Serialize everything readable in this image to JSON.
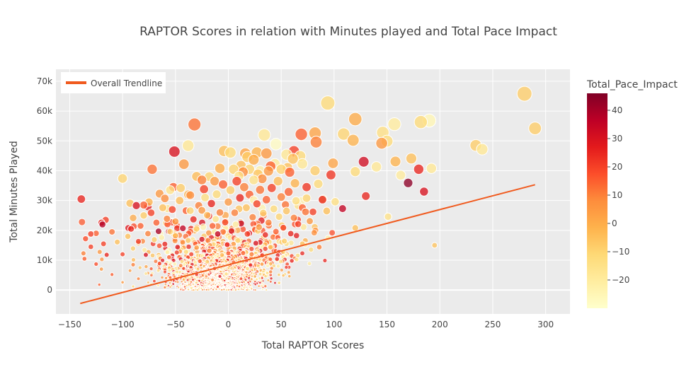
{
  "chart_data": {
    "type": "scatter",
    "title": "RAPTOR Scores in relation with Minutes played and Total Pace Impact",
    "xlabel": "Total RAPTOR Scores",
    "ylabel": "Total Minutes Played",
    "xlim": [
      -163,
      323
    ],
    "ylim": [
      -8000,
      74000
    ],
    "xticks": [
      -150,
      -100,
      -50,
      0,
      50,
      100,
      150,
      200,
      250,
      300
    ],
    "xtick_labels": [
      "−150",
      "−100",
      "−50",
      "0",
      "50",
      "100",
      "150",
      "200",
      "250",
      "300"
    ],
    "yticks": [
      0,
      10000,
      20000,
      30000,
      40000,
      50000,
      60000,
      70000
    ],
    "ytick_labels": [
      "0",
      "10k",
      "20k",
      "30k",
      "40k",
      "50k",
      "60k",
      "70k"
    ],
    "grid": true,
    "plot_background": "#ebebeb",
    "legend": {
      "position": "top-left",
      "entries": [
        {
          "name": "Overall Trendline",
          "color": "#f05a1e"
        }
      ]
    },
    "trendline": {
      "name": "Overall Trendline",
      "color": "#f05a1e",
      "x": [
        -140,
        290
      ],
      "y": [
        -4500,
        35300
      ]
    },
    "colorbar": {
      "title": "Total_Pace_Impact",
      "range": [
        -30,
        46
      ],
      "ticks": [
        40,
        30,
        20,
        10,
        0,
        -10,
        -20
      ],
      "tick_labels": [
        "40",
        "30",
        "20",
        "10",
        "0",
        "−10",
        "−20"
      ],
      "colorscale": [
        "#ffffcc",
        "#ffeda0",
        "#fed976",
        "#feb24c",
        "#fd8d3c",
        "#fc4e2a",
        "#e31a1c",
        "#bd0026",
        "#800026"
      ]
    },
    "size_encoding": "Total Minutes Played",
    "points": [
      {
        "x": 280,
        "y": 65800,
        "c": -8
      },
      {
        "x": 290,
        "y": 54200,
        "c": -8
      },
      {
        "x": 240,
        "y": 47200,
        "c": -18
      },
      {
        "x": 234,
        "y": 48500,
        "c": -8
      },
      {
        "x": 195,
        "y": 15000,
        "c": -6
      },
      {
        "x": 190,
        "y": 56800,
        "c": -25
      },
      {
        "x": 182,
        "y": 56300,
        "c": -12
      },
      {
        "x": 192,
        "y": 40800,
        "c": -18
      },
      {
        "x": 185,
        "y": 33000,
        "c": 30
      },
      {
        "x": 180,
        "y": 40500,
        "c": 25
      },
      {
        "x": 173,
        "y": 44100,
        "c": -5
      },
      {
        "x": 170,
        "y": 35900,
        "c": 44
      },
      {
        "x": 163,
        "y": 38500,
        "c": -20
      },
      {
        "x": 158,
        "y": 43100,
        "c": -2
      },
      {
        "x": 157,
        "y": 55600,
        "c": -20
      },
      {
        "x": 150,
        "y": 49900,
        "c": -12
      },
      {
        "x": 146,
        "y": 52800,
        "c": -14
      },
      {
        "x": 145,
        "y": 49200,
        "c": 5
      },
      {
        "x": 140,
        "y": 41300,
        "c": -18
      },
      {
        "x": 151,
        "y": 24600,
        "c": -15
      },
      {
        "x": 130,
        "y": 31500,
        "c": 25
      },
      {
        "x": 128,
        "y": 43000,
        "c": 32
      },
      {
        "x": 120,
        "y": 57300,
        "c": 0
      },
      {
        "x": 118,
        "y": 50200,
        "c": -2
      },
      {
        "x": 120,
        "y": 39700,
        "c": -12
      },
      {
        "x": 120,
        "y": 20800,
        "c": -5
      },
      {
        "x": 109,
        "y": 52300,
        "c": -10
      },
      {
        "x": 108,
        "y": 27300,
        "c": 35
      },
      {
        "x": 101,
        "y": 29600,
        "c": -14
      },
      {
        "x": 99,
        "y": 42500,
        "c": 2
      },
      {
        "x": 97,
        "y": 38600,
        "c": 22
      },
      {
        "x": 94,
        "y": 62700,
        "c": -12
      },
      {
        "x": 93,
        "y": 26500,
        "c": -5
      },
      {
        "x": 89,
        "y": 30300,
        "c": 25
      },
      {
        "x": 86,
        "y": 14400,
        "c": 10
      },
      {
        "x": 85,
        "y": 35600,
        "c": -12
      },
      {
        "x": 83,
        "y": 49600,
        "c": 10
      },
      {
        "x": 82,
        "y": 52600,
        "c": 2
      },
      {
        "x": 82,
        "y": 40000,
        "c": -8
      },
      {
        "x": 80,
        "y": 26200,
        "c": 20
      },
      {
        "x": 74,
        "y": 34500,
        "c": 22
      },
      {
        "x": 73,
        "y": 26200,
        "c": 12
      },
      {
        "x": 70,
        "y": 42300,
        "c": -18
      },
      {
        "x": 69,
        "y": 52200,
        "c": 15
      },
      {
        "x": 68,
        "y": 44900,
        "c": -12
      },
      {
        "x": 62,
        "y": 46500,
        "c": 20
      },
      {
        "x": 61,
        "y": 44000,
        "c": -6
      },
      {
        "x": 58,
        "y": 39500,
        "c": 15
      },
      {
        "x": 56,
        "y": 41000,
        "c": -5
      },
      {
        "x": 54,
        "y": 28600,
        "c": 12
      },
      {
        "x": 53,
        "y": 16400,
        "c": -8
      },
      {
        "x": 50,
        "y": 40500,
        "c": -10
      },
      {
        "x": 47,
        "y": 36500,
        "c": -4
      },
      {
        "x": 45,
        "y": 48900,
        "c": -28
      },
      {
        "x": 44,
        "y": 42300,
        "c": -20
      },
      {
        "x": 40,
        "y": 41500,
        "c": 15
      },
      {
        "x": 36,
        "y": 45800,
        "c": 5
      },
      {
        "x": 34,
        "y": 52000,
        "c": -18
      },
      {
        "x": 32,
        "y": 37300,
        "c": 8
      },
      {
        "x": 30,
        "y": 40000,
        "c": -22
      },
      {
        "x": 27,
        "y": 46100,
        "c": -2
      },
      {
        "x": 24,
        "y": 43700,
        "c": 0
      },
      {
        "x": 20,
        "y": 40500,
        "c": -10
      },
      {
        "x": 18,
        "y": 44600,
        "c": -8
      },
      {
        "x": 16,
        "y": 45800,
        "c": 2
      },
      {
        "x": 12,
        "y": 41700,
        "c": -5
      },
      {
        "x": 10,
        "y": 38200,
        "c": -15
      },
      {
        "x": 5,
        "y": 40500,
        "c": -10
      },
      {
        "x": 2,
        "y": 46100,
        "c": -12
      },
      {
        "x": -4,
        "y": 46600,
        "c": -5
      },
      {
        "x": -8,
        "y": 40800,
        "c": 0
      },
      {
        "x": -13,
        "y": 36500,
        "c": 5
      },
      {
        "x": -18,
        "y": 38000,
        "c": -10
      },
      {
        "x": -25,
        "y": 36900,
        "c": 10
      },
      {
        "x": -30,
        "y": 38100,
        "c": -4
      },
      {
        "x": -32,
        "y": 55500,
        "c": 12
      },
      {
        "x": -38,
        "y": 48400,
        "c": -18
      },
      {
        "x": -42,
        "y": 42200,
        "c": 5
      },
      {
        "x": -45,
        "y": 34200,
        "c": -8
      },
      {
        "x": -51,
        "y": 46400,
        "c": 30
      },
      {
        "x": -52,
        "y": 34500,
        "c": 15
      },
      {
        "x": -55,
        "y": 33500,
        "c": -16
      },
      {
        "x": -60,
        "y": 30700,
        "c": 8
      },
      {
        "x": -65,
        "y": 32300,
        "c": 5
      },
      {
        "x": -72,
        "y": 40500,
        "c": 12
      },
      {
        "x": -75,
        "y": 29500,
        "c": -2
      },
      {
        "x": -80,
        "y": 28500,
        "c": 15
      },
      {
        "x": -87,
        "y": 28300,
        "c": 30
      },
      {
        "x": -93,
        "y": 29100,
        "c": -5
      },
      {
        "x": -100,
        "y": 37400,
        "c": -10
      },
      {
        "x": -110,
        "y": 19500,
        "c": 12
      },
      {
        "x": -116,
        "y": 23500,
        "c": 20
      },
      {
        "x": -120,
        "y": 22600,
        "c": 25
      },
      {
        "x": -119,
        "y": 22000,
        "c": 38
      },
      {
        "x": -125,
        "y": 19000,
        "c": 15
      },
      {
        "x": -130,
        "y": 18800,
        "c": 20
      },
      {
        "x": -135,
        "y": 17200,
        "c": 18
      },
      {
        "x": -139,
        "y": 30500,
        "c": 25
      },
      {
        "x": -137,
        "y": 12300,
        "c": 10
      },
      {
        "x": -136,
        "y": 10500,
        "c": 15
      },
      {
        "x": -130,
        "y": 14500,
        "c": 20
      },
      {
        "x": -125,
        "y": 8700,
        "c": 18
      },
      {
        "x": -120,
        "y": 7000,
        "c": 5
      },
      {
        "x": -118,
        "y": 15500,
        "c": 20
      },
      {
        "x": -115,
        "y": 11800,
        "c": 25
      },
      {
        "x": -110,
        "y": 5200,
        "c": 15
      },
      {
        "x": -105,
        "y": 16100,
        "c": -5
      },
      {
        "x": -100,
        "y": 12000,
        "c": 20
      },
      {
        "x": -95,
        "y": 18000,
        "c": -5
      },
      {
        "x": -92,
        "y": 20500,
        "c": 25
      },
      {
        "x": -90,
        "y": 8500,
        "c": 10
      },
      {
        "x": -85,
        "y": 16300,
        "c": 22
      },
      {
        "x": -83,
        "y": 21500,
        "c": 15
      },
      {
        "x": -80,
        "y": 25000,
        "c": -8
      },
      {
        "x": -78,
        "y": 11800,
        "c": 30
      },
      {
        "x": -76,
        "y": 18900,
        "c": 10
      },
      {
        "x": -73,
        "y": 25900,
        "c": 20
      },
      {
        "x": -70,
        "y": 16900,
        "c": -8
      },
      {
        "x": -68,
        "y": 22600,
        "c": 15
      },
      {
        "x": -66,
        "y": 19700,
        "c": 40
      },
      {
        "x": -65,
        "y": 8900,
        "c": 20
      },
      {
        "x": -62,
        "y": 27600,
        "c": -5
      },
      {
        "x": -60,
        "y": 15400,
        "c": 25
      },
      {
        "x": -58,
        "y": 23900,
        "c": 10
      },
      {
        "x": -56,
        "y": 11000,
        "c": 15
      },
      {
        "x": -55,
        "y": 19600,
        "c": -12
      },
      {
        "x": -53,
        "y": 27000,
        "c": 20
      },
      {
        "x": -50,
        "y": 23000,
        "c": 5
      },
      {
        "x": -48,
        "y": 14400,
        "c": 30
      },
      {
        "x": -46,
        "y": 30000,
        "c": -4
      },
      {
        "x": -45,
        "y": 8200,
        "c": 10
      },
      {
        "x": -43,
        "y": 20700,
        "c": 35
      },
      {
        "x": -40,
        "y": 26600,
        "c": 15
      },
      {
        "x": -38,
        "y": 16600,
        "c": -6
      },
      {
        "x": -36,
        "y": 31800,
        "c": 8
      },
      {
        "x": -35,
        "y": 12000,
        "c": 20
      },
      {
        "x": -33,
        "y": 23700,
        "c": 25
      },
      {
        "x": -30,
        "y": 20500,
        "c": -10
      },
      {
        "x": -28,
        "y": 28300,
        "c": 10
      },
      {
        "x": -27,
        "y": 9700,
        "c": 15
      },
      {
        "x": -25,
        "y": 17000,
        "c": 30
      },
      {
        "x": -23,
        "y": 33800,
        "c": 20
      },
      {
        "x": -20,
        "y": 25100,
        "c": -5
      },
      {
        "x": -18,
        "y": 13200,
        "c": 10
      },
      {
        "x": -16,
        "y": 29000,
        "c": 25
      },
      {
        "x": -15,
        "y": 21500,
        "c": 15
      },
      {
        "x": -13,
        "y": 7200,
        "c": 20
      },
      {
        "x": -11,
        "y": 32100,
        "c": -12
      },
      {
        "x": -10,
        "y": 18800,
        "c": 35
      },
      {
        "x": -8,
        "y": 26000,
        "c": 10
      },
      {
        "x": -6,
        "y": 11700,
        "c": -5
      },
      {
        "x": -5,
        "y": 35400,
        "c": 15
      },
      {
        "x": -3,
        "y": 22700,
        "c": 20
      },
      {
        "x": -1,
        "y": 15200,
        "c": 25
      },
      {
        "x": 0,
        "y": 29500,
        "c": 5
      },
      {
        "x": 2,
        "y": 33500,
        "c": -8
      },
      {
        "x": 3,
        "y": 19800,
        "c": 30
      },
      {
        "x": 5,
        "y": 9300,
        "c": 15
      },
      {
        "x": 6,
        "y": 25900,
        "c": 10
      },
      {
        "x": 8,
        "y": 36500,
        "c": 20
      },
      {
        "x": 9,
        "y": 16600,
        "c": -10
      },
      {
        "x": 11,
        "y": 30900,
        "c": 25
      },
      {
        "x": 12,
        "y": 22300,
        "c": 35
      },
      {
        "x": 14,
        "y": 12400,
        "c": 15
      },
      {
        "x": 15,
        "y": 34500,
        "c": 10
      },
      {
        "x": 17,
        "y": 27600,
        "c": -5
      },
      {
        "x": 18,
        "y": 18800,
        "c": 20
      },
      {
        "x": 20,
        "y": 32000,
        "c": 15
      },
      {
        "x": 21,
        "y": 8400,
        "c": 25
      },
      {
        "x": 23,
        "y": 24400,
        "c": 10
      },
      {
        "x": 24,
        "y": 36900,
        "c": -15
      },
      {
        "x": 26,
        "y": 15700,
        "c": 30
      },
      {
        "x": 27,
        "y": 28900,
        "c": 20
      },
      {
        "x": 29,
        "y": 21100,
        "c": 5
      },
      {
        "x": 30,
        "y": 33600,
        "c": 12
      },
      {
        "x": 32,
        "y": 11600,
        "c": 20
      },
      {
        "x": 33,
        "y": 25800,
        "c": -8
      },
      {
        "x": 35,
        "y": 18500,
        "c": 25
      },
      {
        "x": 36,
        "y": 30300,
        "c": 15
      },
      {
        "x": 38,
        "y": 22600,
        "c": 10
      },
      {
        "x": 40,
        "y": 14400,
        "c": -5
      },
      {
        "x": 41,
        "y": 34200,
        "c": 20
      },
      {
        "x": 43,
        "y": 27200,
        "c": -12
      },
      {
        "x": 45,
        "y": 19600,
        "c": 15
      },
      {
        "x": 46,
        "y": 10400,
        "c": 25
      },
      {
        "x": 48,
        "y": 24600,
        "c": -10
      },
      {
        "x": 50,
        "y": 31200,
        "c": 10
      },
      {
        "x": 52,
        "y": 20900,
        "c": 20
      },
      {
        "x": 55,
        "y": 26500,
        "c": -6
      },
      {
        "x": 57,
        "y": 32900,
        "c": 15
      },
      {
        "x": 59,
        "y": 18900,
        "c": 25
      },
      {
        "x": 62,
        "y": 24200,
        "c": 10
      },
      {
        "x": 64,
        "y": 29900,
        "c": -14
      },
      {
        "x": 66,
        "y": 22100,
        "c": 20
      },
      {
        "x": 70,
        "y": 27600,
        "c": 15
      },
      {
        "x": 74,
        "y": 30800,
        "c": -10
      },
      {
        "x": 77,
        "y": 23100,
        "c": 5
      },
      {
        "x": 52,
        "y": 12800,
        "c": -12
      },
      {
        "x": 40,
        "y": 6100,
        "c": 10
      },
      {
        "x": 25,
        "y": 4600,
        "c": -10
      },
      {
        "x": 12,
        "y": 3800,
        "c": 20
      },
      {
        "x": -2,
        "y": 5400,
        "c": -15
      },
      {
        "x": -15,
        "y": 3400,
        "c": 10
      },
      {
        "x": -30,
        "y": 5200,
        "c": 25
      },
      {
        "x": -42,
        "y": 3500,
        "c": -5
      },
      {
        "x": -55,
        "y": 4200,
        "c": 15
      },
      {
        "x": -70,
        "y": 3000,
        "c": 20
      },
      {
        "x": -85,
        "y": 3800,
        "c": 10
      },
      {
        "x": -100,
        "y": 2600,
        "c": 5
      },
      {
        "x": -122,
        "y": 1800,
        "c": 15
      },
      {
        "x": -90,
        "y": 1200,
        "c": -10
      },
      {
        "x": -60,
        "y": 900,
        "c": 10
      },
      {
        "x": -35,
        "y": 700,
        "c": -18
      },
      {
        "x": -10,
        "y": 1100,
        "c": 20
      },
      {
        "x": 15,
        "y": 800,
        "c": -20
      },
      {
        "x": 35,
        "y": 1300,
        "c": 15
      },
      {
        "x": 48,
        "y": 2400,
        "c": -10
      },
      {
        "x": 60,
        "y": 9800,
        "c": 25
      },
      {
        "x": 70,
        "y": 15500,
        "c": -5
      },
      {
        "x": 30,
        "y": 16000,
        "c": 30
      },
      {
        "x": -20,
        "y": 9500,
        "c": -10
      },
      {
        "x": -5,
        "y": 19500,
        "c": 12
      },
      {
        "x": -40,
        "y": 12800,
        "c": -12
      },
      {
        "x": -25,
        "y": 26700,
        "c": 5
      },
      {
        "x": 10,
        "y": 27200,
        "c": -6
      },
      {
        "x": 22,
        "y": 12000,
        "c": 10
      },
      {
        "x": -12,
        "y": 23800,
        "c": -16
      },
      {
        "x": 7,
        "y": 22000,
        "c": -20
      },
      {
        "x": -30,
        "y": 14200,
        "c": 5
      },
      {
        "x": 18,
        "y": 7200,
        "c": -15
      },
      {
        "x": -50,
        "y": 18200,
        "c": -2
      },
      {
        "x": -8,
        "y": 4600,
        "c": 30
      },
      {
        "x": 0,
        "y": 12300,
        "c": 15
      },
      {
        "x": 28,
        "y": 38900,
        "c": -6
      },
      {
        "x": -22,
        "y": 31000,
        "c": -14
      },
      {
        "x": 14,
        "y": 39600,
        "c": 8
      },
      {
        "x": 38,
        "y": 39900,
        "c": 5
      },
      {
        "x": 63,
        "y": 35800,
        "c": -2
      },
      {
        "x": 55,
        "y": 45400,
        "c": -18
      },
      {
        "x": 24,
        "y": 30200,
        "c": -22
      },
      {
        "x": -36,
        "y": 26600,
        "c": -10
      }
    ]
  }
}
